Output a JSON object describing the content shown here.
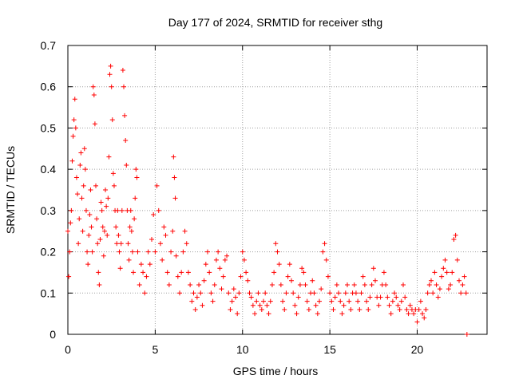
{
  "chart_data": {
    "type": "scatter",
    "title": "Day 177 of 2024, SRMTID for receiver sthg",
    "xlabel": "GPS time / hours",
    "ylabel": "SRMTID / TECUs",
    "xlim": [
      0,
      24
    ],
    "ylim": [
      0,
      0.7
    ],
    "x_ticks": [
      0,
      5,
      10,
      15,
      20
    ],
    "y_ticks": [
      0,
      0.1,
      0.2,
      0.3,
      0.4,
      0.5,
      0.6,
      0.7
    ],
    "x_tick_labels": [
      "0",
      "5",
      "10",
      "15",
      "20"
    ],
    "y_tick_labels": [
      "0",
      "0.1",
      "0.2",
      "0.3",
      "0.4",
      "0.5",
      "0.6",
      "0.7"
    ],
    "grid": true,
    "marker": "plus",
    "color": "#ff0000",
    "series": [
      {
        "name": "SRMTID",
        "points": [
          [
            0.0,
            0.25
          ],
          [
            0.05,
            0.14
          ],
          [
            0.1,
            0.2
          ],
          [
            0.15,
            0.27
          ],
          [
            0.2,
            0.3
          ],
          [
            0.25,
            0.42
          ],
          [
            0.3,
            0.48
          ],
          [
            0.35,
            0.52
          ],
          [
            0.4,
            0.57
          ],
          [
            0.45,
            0.5
          ],
          [
            0.5,
            0.38
          ],
          [
            0.55,
            0.34
          ],
          [
            0.6,
            0.22
          ],
          [
            0.65,
            0.28
          ],
          [
            0.7,
            0.41
          ],
          [
            0.75,
            0.44
          ],
          [
            0.8,
            0.33
          ],
          [
            0.85,
            0.25
          ],
          [
            0.9,
            0.36
          ],
          [
            0.95,
            0.45
          ],
          [
            1.0,
            0.4
          ],
          [
            1.05,
            0.3
          ],
          [
            1.1,
            0.2
          ],
          [
            1.15,
            0.17
          ],
          [
            1.2,
            0.24
          ],
          [
            1.25,
            0.29
          ],
          [
            1.3,
            0.35
          ],
          [
            1.35,
            0.26
          ],
          [
            1.4,
            0.2
          ],
          [
            1.45,
            0.6
          ],
          [
            1.5,
            0.58
          ],
          [
            1.55,
            0.51
          ],
          [
            1.6,
            0.36
          ],
          [
            1.65,
            0.28
          ],
          [
            1.7,
            0.22
          ],
          [
            1.75,
            0.15
          ],
          [
            1.8,
            0.12
          ],
          [
            1.85,
            0.23
          ],
          [
            1.9,
            0.32
          ],
          [
            1.95,
            0.3
          ],
          [
            2.0,
            0.26
          ],
          [
            2.05,
            0.19
          ],
          [
            2.1,
            0.25
          ],
          [
            2.15,
            0.35
          ],
          [
            2.2,
            0.31
          ],
          [
            2.25,
            0.24
          ],
          [
            2.3,
            0.33
          ],
          [
            2.35,
            0.43
          ],
          [
            2.4,
            0.63
          ],
          [
            2.45,
            0.65
          ],
          [
            2.5,
            0.6
          ],
          [
            2.55,
            0.52
          ],
          [
            2.6,
            0.39
          ],
          [
            2.65,
            0.36
          ],
          [
            2.7,
            0.3
          ],
          [
            2.75,
            0.26
          ],
          [
            2.8,
            0.22
          ],
          [
            2.85,
            0.3
          ],
          [
            2.9,
            0.24
          ],
          [
            2.95,
            0.2
          ],
          [
            3.0,
            0.16
          ],
          [
            3.05,
            0.22
          ],
          [
            3.1,
            0.3
          ],
          [
            3.15,
            0.64
          ],
          [
            3.2,
            0.6
          ],
          [
            3.25,
            0.53
          ],
          [
            3.3,
            0.47
          ],
          [
            3.35,
            0.41
          ],
          [
            3.4,
            0.3
          ],
          [
            3.45,
            0.22
          ],
          [
            3.5,
            0.18
          ],
          [
            3.55,
            0.26
          ],
          [
            3.6,
            0.3
          ],
          [
            3.65,
            0.25
          ],
          [
            3.7,
            0.2
          ],
          [
            3.75,
            0.15
          ],
          [
            3.8,
            0.28
          ],
          [
            3.85,
            0.33
          ],
          [
            3.9,
            0.4
          ],
          [
            3.95,
            0.38
          ],
          [
            4.0,
            0.2
          ],
          [
            4.1,
            0.12
          ],
          [
            4.2,
            0.17
          ],
          [
            4.3,
            0.15
          ],
          [
            4.4,
            0.1
          ],
          [
            4.5,
            0.14
          ],
          [
            4.6,
            0.2
          ],
          [
            4.7,
            0.17
          ],
          [
            4.8,
            0.23
          ],
          [
            4.9,
            0.29
          ],
          [
            5.0,
            0.2
          ],
          [
            5.1,
            0.36
          ],
          [
            5.2,
            0.3
          ],
          [
            5.3,
            0.22
          ],
          [
            5.4,
            0.18
          ],
          [
            5.5,
            0.26
          ],
          [
            5.6,
            0.24
          ],
          [
            5.7,
            0.15
          ],
          [
            5.8,
            0.12
          ],
          [
            5.9,
            0.2
          ],
          [
            6.0,
            0.25
          ],
          [
            6.05,
            0.43
          ],
          [
            6.1,
            0.38
          ],
          [
            6.15,
            0.33
          ],
          [
            6.2,
            0.19
          ],
          [
            6.3,
            0.14
          ],
          [
            6.4,
            0.1
          ],
          [
            6.5,
            0.15
          ],
          [
            6.6,
            0.2
          ],
          [
            6.7,
            0.25
          ],
          [
            6.8,
            0.22
          ],
          [
            6.9,
            0.15
          ],
          [
            7.0,
            0.12
          ],
          [
            7.1,
            0.08
          ],
          [
            7.2,
            0.1
          ],
          [
            7.3,
            0.06
          ],
          [
            7.4,
            0.09
          ],
          [
            7.5,
            0.12
          ],
          [
            7.6,
            0.1
          ],
          [
            7.7,
            0.07
          ],
          [
            7.8,
            0.13
          ],
          [
            7.9,
            0.17
          ],
          [
            8.0,
            0.2
          ],
          [
            8.1,
            0.15
          ],
          [
            8.2,
            0.1
          ],
          [
            8.3,
            0.08
          ],
          [
            8.4,
            0.12
          ],
          [
            8.5,
            0.18
          ],
          [
            8.6,
            0.2
          ],
          [
            8.7,
            0.16
          ],
          [
            8.8,
            0.11
          ],
          [
            8.9,
            0.14
          ],
          [
            9.0,
            0.18
          ],
          [
            9.1,
            0.19
          ],
          [
            9.2,
            0.1
          ],
          [
            9.3,
            0.06
          ],
          [
            9.4,
            0.08
          ],
          [
            9.5,
            0.11
          ],
          [
            9.6,
            0.09
          ],
          [
            9.7,
            0.05
          ],
          [
            9.8,
            0.1
          ],
          [
            9.9,
            0.14
          ],
          [
            10.0,
            0.2
          ],
          [
            10.1,
            0.18
          ],
          [
            10.2,
            0.15
          ],
          [
            10.3,
            0.13
          ],
          [
            10.4,
            0.1
          ],
          [
            10.5,
            0.09
          ],
          [
            10.6,
            0.07
          ],
          [
            10.7,
            0.05
          ],
          [
            10.8,
            0.08
          ],
          [
            10.9,
            0.1
          ],
          [
            11.0,
            0.07
          ],
          [
            11.1,
            0.06
          ],
          [
            11.2,
            0.08
          ],
          [
            11.3,
            0.1
          ],
          [
            11.4,
            0.07
          ],
          [
            11.5,
            0.05
          ],
          [
            11.6,
            0.08
          ],
          [
            11.7,
            0.12
          ],
          [
            11.8,
            0.15
          ],
          [
            11.9,
            0.22
          ],
          [
            12.0,
            0.2
          ],
          [
            12.1,
            0.17
          ],
          [
            12.2,
            0.12
          ],
          [
            12.3,
            0.08
          ],
          [
            12.4,
            0.06
          ],
          [
            12.5,
            0.1
          ],
          [
            12.6,
            0.14
          ],
          [
            12.7,
            0.17
          ],
          [
            12.8,
            0.13
          ],
          [
            12.9,
            0.1
          ],
          [
            13.0,
            0.07
          ],
          [
            13.1,
            0.05
          ],
          [
            13.2,
            0.09
          ],
          [
            13.3,
            0.12
          ],
          [
            13.4,
            0.16
          ],
          [
            13.5,
            0.15
          ],
          [
            13.6,
            0.12
          ],
          [
            13.7,
            0.08
          ],
          [
            13.8,
            0.06
          ],
          [
            13.9,
            0.1
          ],
          [
            14.0,
            0.13
          ],
          [
            14.1,
            0.1
          ],
          [
            14.2,
            0.07
          ],
          [
            14.3,
            0.05
          ],
          [
            14.4,
            0.08
          ],
          [
            14.5,
            0.11
          ],
          [
            14.6,
            0.2
          ],
          [
            14.7,
            0.22
          ],
          [
            14.8,
            0.18
          ],
          [
            14.9,
            0.14
          ],
          [
            15.0,
            0.1
          ],
          [
            15.1,
            0.08
          ],
          [
            15.2,
            0.06
          ],
          [
            15.3,
            0.09
          ],
          [
            15.4,
            0.12
          ],
          [
            15.5,
            0.1
          ],
          [
            15.6,
            0.08
          ],
          [
            15.7,
            0.05
          ],
          [
            15.8,
            0.07
          ],
          [
            15.9,
            0.1
          ],
          [
            16.0,
            0.12
          ],
          [
            16.1,
            0.08
          ],
          [
            16.2,
            0.06
          ],
          [
            16.3,
            0.1
          ],
          [
            16.4,
            0.12
          ],
          [
            16.5,
            0.1
          ],
          [
            16.6,
            0.08
          ],
          [
            16.7,
            0.06
          ],
          [
            16.8,
            0.1
          ],
          [
            16.9,
            0.14
          ],
          [
            17.0,
            0.12
          ],
          [
            17.1,
            0.08
          ],
          [
            17.2,
            0.06
          ],
          [
            17.3,
            0.09
          ],
          [
            17.4,
            0.12
          ],
          [
            17.5,
            0.16
          ],
          [
            17.6,
            0.13
          ],
          [
            17.7,
            0.09
          ],
          [
            17.8,
            0.07
          ],
          [
            17.9,
            0.09
          ],
          [
            18.0,
            0.12
          ],
          [
            18.1,
            0.15
          ],
          [
            18.2,
            0.12
          ],
          [
            18.3,
            0.09
          ],
          [
            18.4,
            0.07
          ],
          [
            18.5,
            0.05
          ],
          [
            18.6,
            0.08
          ],
          [
            18.7,
            0.1
          ],
          [
            18.8,
            0.09
          ],
          [
            18.9,
            0.07
          ],
          [
            19.0,
            0.06
          ],
          [
            19.1,
            0.08
          ],
          [
            19.2,
            0.12
          ],
          [
            19.3,
            0.09
          ],
          [
            19.4,
            0.06
          ],
          [
            19.5,
            0.05
          ],
          [
            19.6,
            0.07
          ],
          [
            19.7,
            0.06
          ],
          [
            19.8,
            0.05
          ],
          [
            19.9,
            0.06
          ],
          [
            20.0,
            0.03
          ],
          [
            20.1,
            0.06
          ],
          [
            20.2,
            0.08
          ],
          [
            20.3,
            0.05
          ],
          [
            20.4,
            0.04
          ],
          [
            20.5,
            0.06
          ],
          [
            20.6,
            0.1
          ],
          [
            20.7,
            0.12
          ],
          [
            20.8,
            0.13
          ],
          [
            20.9,
            0.1
          ],
          [
            21.0,
            0.15
          ],
          [
            21.1,
            0.12
          ],
          [
            21.2,
            0.09
          ],
          [
            21.3,
            0.11
          ],
          [
            21.4,
            0.14
          ],
          [
            21.5,
            0.16
          ],
          [
            21.6,
            0.18
          ],
          [
            21.7,
            0.15
          ],
          [
            21.8,
            0.11
          ],
          [
            21.9,
            0.12
          ],
          [
            22.0,
            0.15
          ],
          [
            22.1,
            0.23
          ],
          [
            22.2,
            0.24
          ],
          [
            22.3,
            0.18
          ],
          [
            22.4,
            0.13
          ],
          [
            22.5,
            0.1
          ],
          [
            22.6,
            0.12
          ],
          [
            22.7,
            0.14
          ],
          [
            22.8,
            0.1
          ],
          [
            22.85,
            0.0
          ]
        ]
      }
    ]
  }
}
